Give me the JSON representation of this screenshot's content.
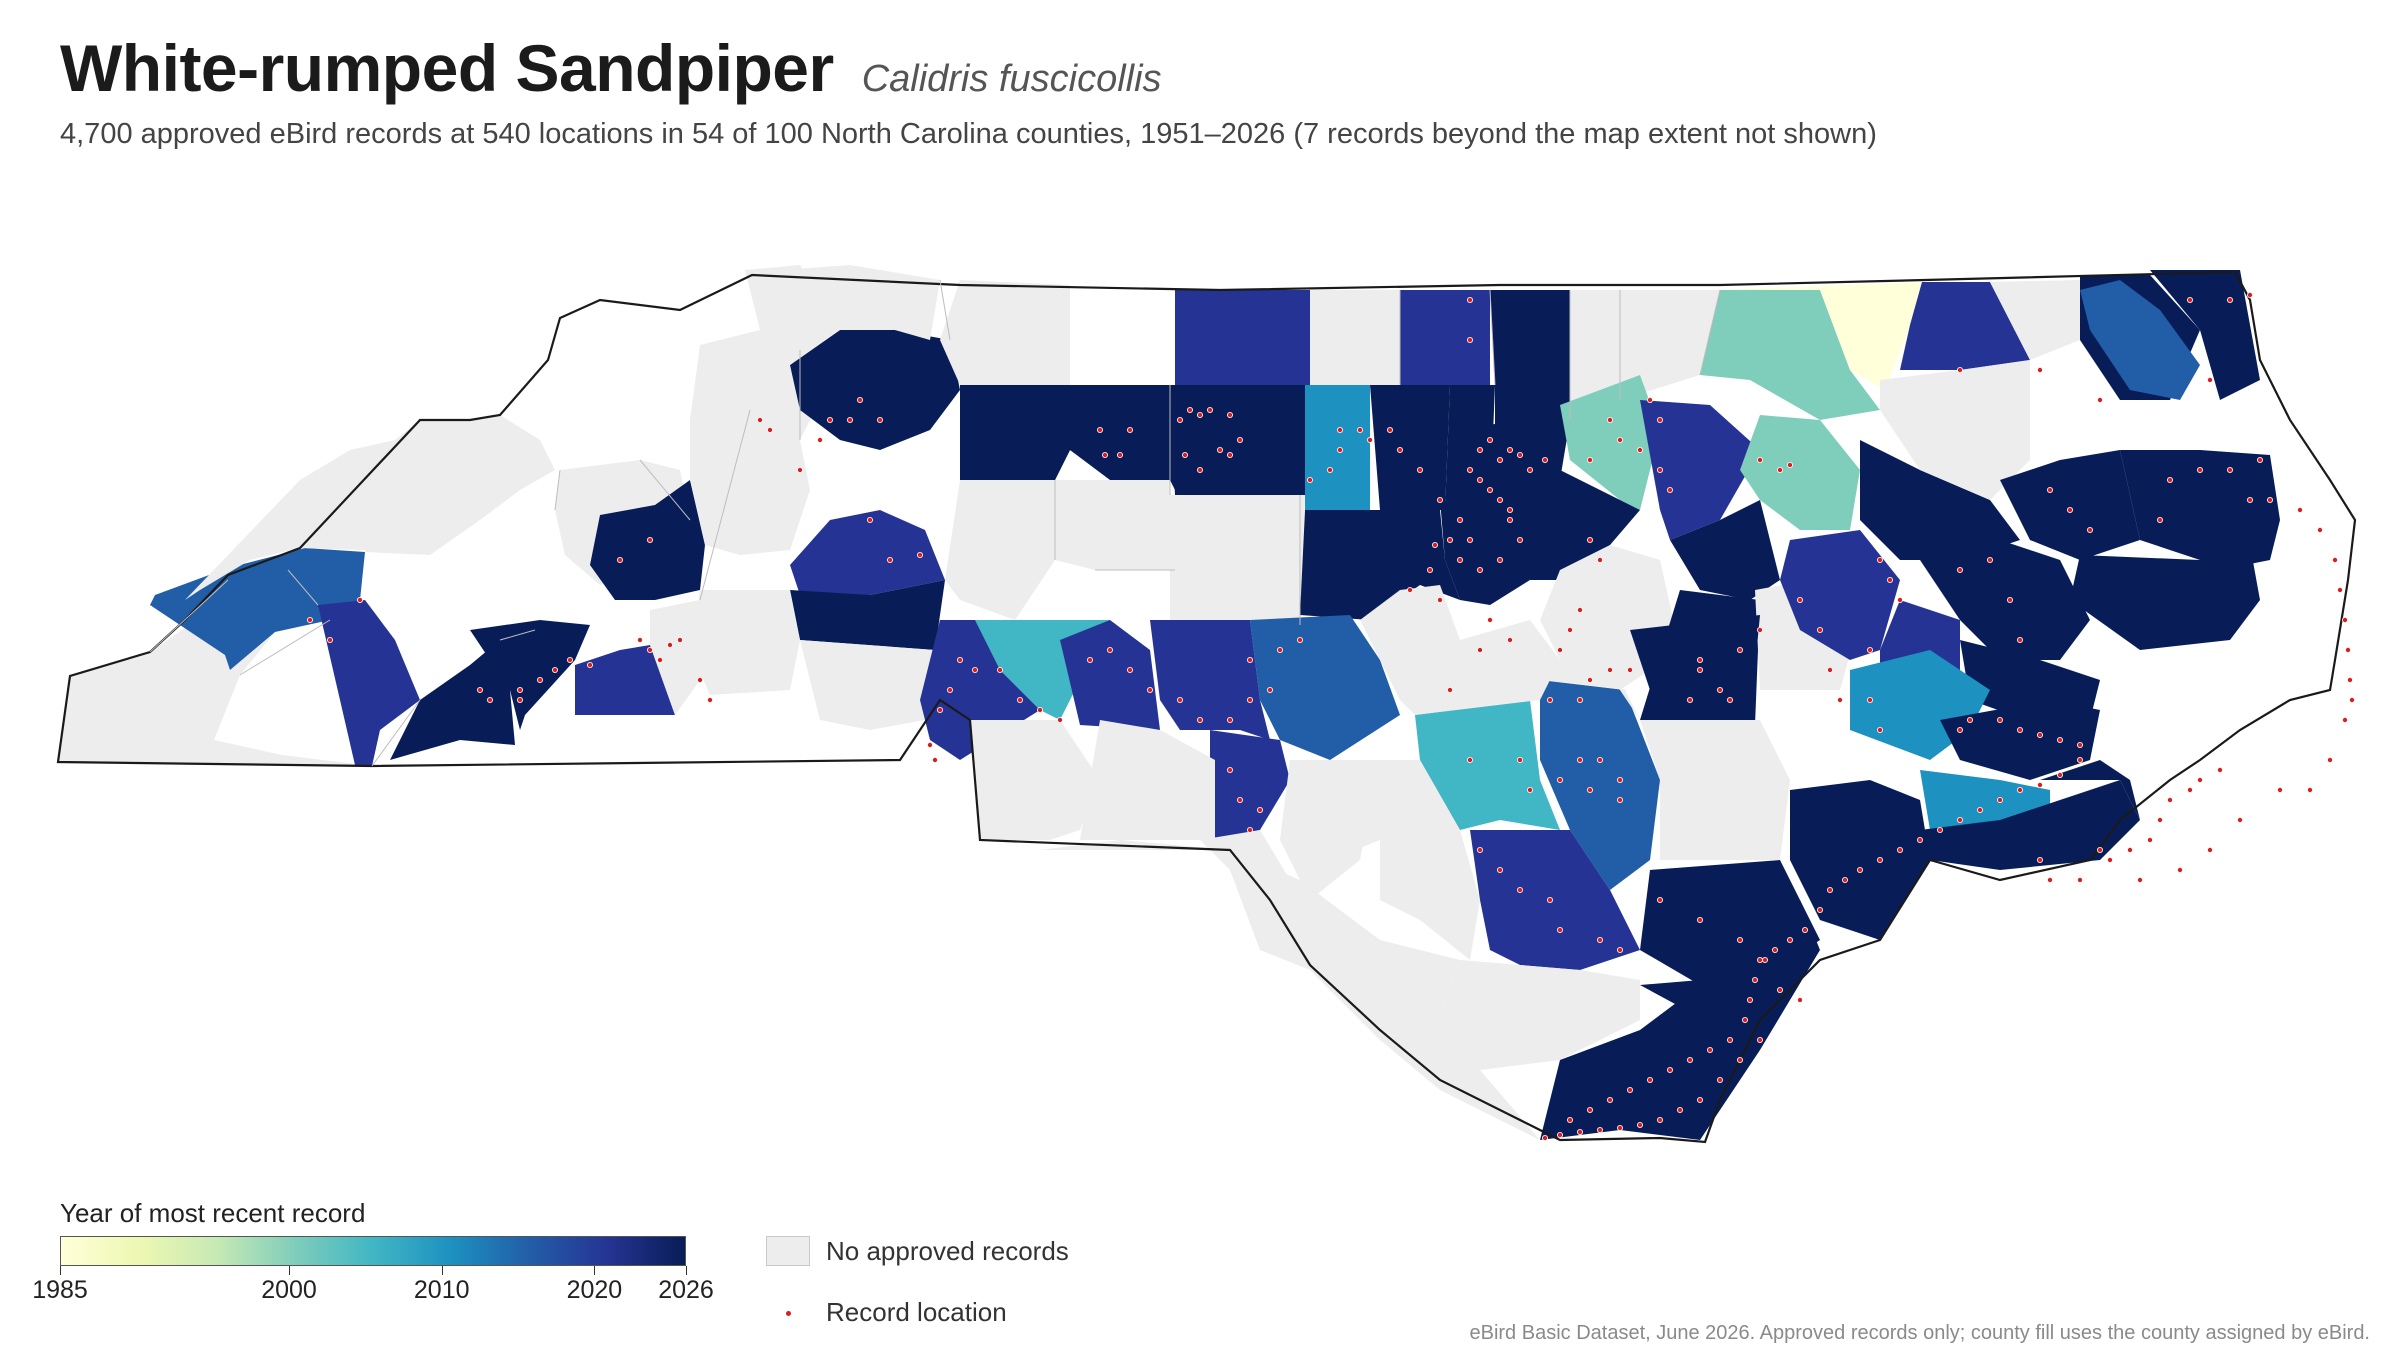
{
  "header": {
    "title": "White-rumped Sandpiper",
    "scientific_name": "Calidris fuscicollis",
    "subtitle": "4,700 approved eBird records at 540 locations in 54 of 100 North Carolina counties, 1951–2026 (7 records beyond the map extent not shown)"
  },
  "legend": {
    "title": "Year of most recent record",
    "range": [
      1985,
      2026
    ],
    "ticks": [
      "1985",
      "2000",
      "2010",
      "2020",
      "2026"
    ],
    "gradient_colors": [
      "#ffffd9",
      "#edf8b1",
      "#c7e9b4",
      "#7fcdbb",
      "#41b6c4",
      "#1d91c0",
      "#225ea8",
      "#253494",
      "#081d58"
    ],
    "no_records_label": "No approved records",
    "no_records_color": "#ededed",
    "record_location_label": "Record location",
    "record_color": "#d62020"
  },
  "source_note": "eBird Basic Dataset, June 2026. Approved records only; county fill uses the county assigned by eBird.",
  "map": {
    "state": "North Carolina",
    "county_fill_years": [
      1985,
      1999,
      2003,
      2006,
      2009,
      2012,
      2016,
      2021,
      2024,
      2025,
      2026
    ]
  }
}
